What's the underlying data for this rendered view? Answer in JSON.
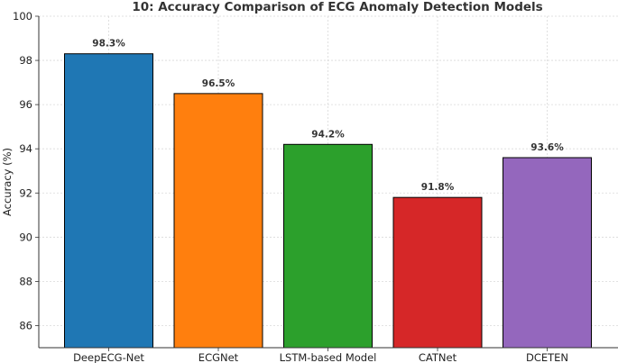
{
  "chart_data": {
    "type": "bar",
    "title": "10: Accuracy Comparison of ECG Anomaly Detection Models",
    "xlabel": "",
    "ylabel": "Accuracy (%)",
    "ylim": [
      85,
      100
    ],
    "yticks": [
      86,
      88,
      90,
      92,
      94,
      96,
      98,
      100
    ],
    "grid": true,
    "categories": [
      "DeepECG-Net",
      "ECGNet",
      "LSTM-based Model",
      "CATNet",
      "DCETEN"
    ],
    "values": [
      98.3,
      96.5,
      94.2,
      91.8,
      93.6
    ],
    "data_labels": [
      "98.3%",
      "96.5%",
      "94.2%",
      "91.8%",
      "93.6%"
    ],
    "colors": [
      "#1f77b4",
      "#ff7f0e",
      "#2ca02c",
      "#d62728",
      "#9467bd"
    ]
  }
}
